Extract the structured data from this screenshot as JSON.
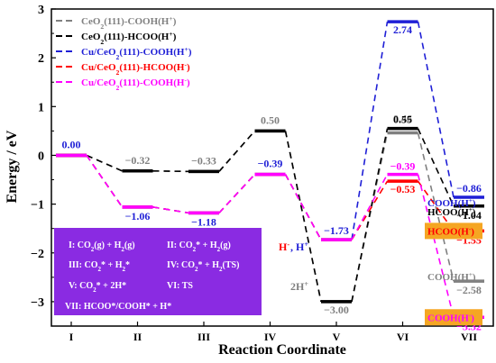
{
  "chart_data": {
    "type": "line",
    "xlabel": "Reaction Coordinate",
    "ylabel": "Energy / eV",
    "categories": [
      "I",
      "II",
      "III",
      "IV",
      "V",
      "VI",
      "VII"
    ],
    "ylim": [
      -3.5,
      3
    ],
    "yticks": [
      "-3",
      "-2",
      "-1",
      "0",
      "1",
      "2",
      "3"
    ],
    "series": [
      {
        "name": "CeO2(111)-COOH(H+)",
        "color": "#808080",
        "values": [
          0.0,
          -0.32,
          -0.33,
          0.5,
          -3.0,
          0.46,
          -2.58
        ],
        "labels": [
          "",
          "-0.32",
          "-0.33",
          "0.50",
          "-3.00",
          "0.46",
          "-2.58"
        ]
      },
      {
        "name": "CeO2(111)-HCOO(H+)",
        "color": "#000000",
        "values": [
          0.0,
          -0.32,
          -0.33,
          0.5,
          -3.0,
          0.55,
          -1.04
        ],
        "labels": [
          "",
          "",
          "",
          "",
          "",
          "0.55",
          "-1.04"
        ]
      },
      {
        "name": "Cu/CeO2(111)-COOH(H+)",
        "color": "#1f1fd6",
        "values": [
          0.0,
          -1.06,
          -1.18,
          -0.39,
          -1.73,
          2.74,
          -0.86
        ],
        "labels": [
          "0.00",
          "-1.06",
          "-1.18",
          "-0.39",
          "-1.73",
          "2.74",
          "-0.86"
        ]
      },
      {
        "name": "Cu/CeO2(111)-HCOO(H-)",
        "color": "#ff0000",
        "values": [
          0.0,
          -1.06,
          -1.18,
          -0.39,
          -1.73,
          -0.53,
          -1.55
        ],
        "labels": [
          "",
          "",
          "",
          "",
          "",
          "-0.53",
          "-1.55"
        ]
      },
      {
        "name": "Cu/CeO2(111)-COOH(H-)",
        "color": "#ff00ff",
        "values": [
          0.0,
          -1.06,
          -1.18,
          -0.39,
          -1.73,
          -0.39,
          -3.32
        ],
        "labels": [
          "",
          "",
          "",
          "",
          "",
          "-0.39",
          "-3.32"
        ]
      }
    ],
    "legend": {
      "placement": "top-left",
      "entries": [
        {
          "parts": [
            "CeO",
            "2",
            "(111)-COOH(H",
            "+",
            ")"
          ],
          "color": "#808080"
        },
        {
          "parts": [
            "CeO",
            "2",
            "(111)-HCOO(H",
            "+",
            ")"
          ],
          "color": "#000000"
        },
        {
          "parts": [
            "Cu/CeO",
            "2",
            "(111)-COOH(H",
            "+",
            ")"
          ],
          "color": "#1f1fd6"
        },
        {
          "parts": [
            "Cu/CeO",
            "2",
            "(111)-HCOO(H",
            "-",
            ")"
          ],
          "color": "#ff0000"
        },
        {
          "parts": [
            "Cu/CeO",
            "2",
            "(111)-COOH(H",
            "-",
            ")"
          ],
          "color": "#ff00ff"
        }
      ]
    },
    "annotations": {
      "v_2h": "2H",
      "v_2h_sup": "+",
      "v_h_red": "H",
      "v_h_red_sup": "-",
      "v_h_blue": ", H",
      "v_h_blue_sup": "+",
      "right_labels": [
        {
          "text": "COOH(H",
          "sup": "+",
          "tail": ")",
          "color": "#1f1fd6",
          "highlight": false
        },
        {
          "text": "HCOO(H",
          "sup": "+",
          "tail": ")",
          "color": "#000000",
          "highlight": false
        },
        {
          "text": "HCOO(H",
          "sup": "-",
          "tail": ")",
          "color": "#ff0000",
          "highlight": true
        },
        {
          "text": "COOH(H",
          "sup": "+",
          "tail": ")",
          "color": "#808080",
          "highlight": false
        },
        {
          "text": "COOH(H",
          "sup": "-",
          "tail": ")",
          "color": "#ff00ff",
          "highlight": true
        }
      ],
      "highlight_color": "#f5a623"
    },
    "key_box": {
      "color": "#8a2be2",
      "rows": [
        [
          "I: CO2(g) + H2(g)",
          "II: CO2* + H2(g)"
        ],
        [
          "III: CO2* + H2*",
          "IV: CO2* + H2(TS)"
        ],
        [
          "V: CO2* + 2H*",
          "VI: TS"
        ],
        [
          "VII: HCOO*/COOH* + H*"
        ]
      ]
    },
    "grid": false
  }
}
